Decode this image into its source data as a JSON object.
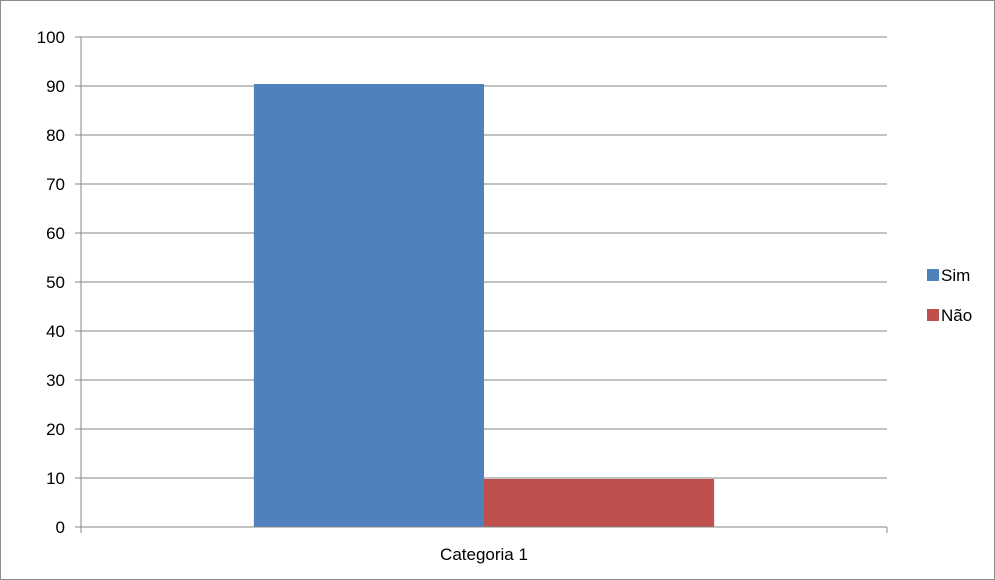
{
  "chart_data": {
    "type": "bar",
    "categories": [
      "Categoria 1"
    ],
    "series": [
      {
        "name": "Sim",
        "values": [
          90.4
        ],
        "color": "#4F81BD"
      },
      {
        "name": "Não",
        "values": [
          9.8
        ],
        "color": "#C0504D"
      }
    ],
    "ylim": [
      0,
      100
    ],
    "yticks": [
      0,
      10,
      20,
      30,
      40,
      50,
      60,
      70,
      80,
      90,
      100
    ],
    "grid": true,
    "legend_position": "right",
    "title": "",
    "xlabel": "",
    "ylabel": ""
  }
}
